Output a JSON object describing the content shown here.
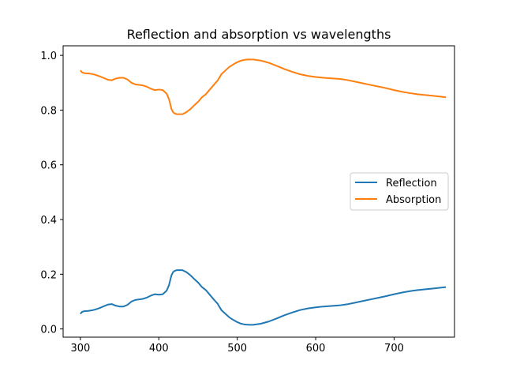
{
  "chart_data": {
    "type": "line",
    "title": "Reflection and absorption vs wavelengths",
    "xlabel": "",
    "ylabel": "",
    "xlim": [
      278,
      777
    ],
    "ylim": [
      -0.03,
      1.035
    ],
    "xticks": [
      300,
      400,
      500,
      600,
      700
    ],
    "yticks": [
      0.0,
      0.2,
      0.4,
      0.6,
      0.8,
      1.0
    ],
    "xtick_labels": [
      "300",
      "400",
      "500",
      "600",
      "700"
    ],
    "ytick_labels": [
      "0.0",
      "0.2",
      "0.4",
      "0.6",
      "0.8",
      "1.0"
    ],
    "grid": false,
    "legend_position": "center-right",
    "series": [
      {
        "name": "Reflection",
        "color": "#1f77b4",
        "x": [
          300,
          302,
          305,
          310,
          315,
          320,
          325,
          330,
          335,
          340,
          345,
          350,
          355,
          360,
          365,
          370,
          375,
          380,
          385,
          390,
          395,
          400,
          405,
          410,
          413,
          416,
          418,
          420,
          423,
          425,
          430,
          435,
          440,
          445,
          450,
          455,
          460,
          465,
          470,
          475,
          480,
          485,
          490,
          495,
          500,
          505,
          510,
          515,
          520,
          530,
          540,
          550,
          560,
          570,
          580,
          590,
          600,
          610,
          620,
          630,
          640,
          650,
          660,
          670,
          680,
          690,
          700,
          710,
          720,
          730,
          740,
          750,
          760,
          766
        ],
        "y": [
          0.055,
          0.062,
          0.065,
          0.066,
          0.068,
          0.072,
          0.077,
          0.083,
          0.089,
          0.091,
          0.085,
          0.082,
          0.082,
          0.088,
          0.1,
          0.106,
          0.108,
          0.11,
          0.115,
          0.122,
          0.127,
          0.125,
          0.127,
          0.14,
          0.16,
          0.195,
          0.207,
          0.212,
          0.215,
          0.215,
          0.215,
          0.208,
          0.197,
          0.183,
          0.17,
          0.153,
          0.142,
          0.125,
          0.108,
          0.092,
          0.068,
          0.055,
          0.042,
          0.033,
          0.025,
          0.019,
          0.016,
          0.015,
          0.015,
          0.019,
          0.027,
          0.038,
          0.05,
          0.06,
          0.069,
          0.075,
          0.079,
          0.082,
          0.084,
          0.086,
          0.09,
          0.096,
          0.102,
          0.108,
          0.114,
          0.12,
          0.127,
          0.133,
          0.138,
          0.142,
          0.145,
          0.148,
          0.151,
          0.153
        ]
      },
      {
        "name": "Absorption",
        "color": "#ff7f0e",
        "x": [
          300,
          302,
          305,
          310,
          315,
          320,
          325,
          330,
          335,
          340,
          345,
          350,
          355,
          360,
          365,
          370,
          375,
          380,
          385,
          390,
          395,
          400,
          405,
          410,
          413,
          416,
          418,
          420,
          423,
          425,
          430,
          435,
          440,
          445,
          450,
          455,
          460,
          465,
          470,
          475,
          480,
          485,
          490,
          495,
          500,
          505,
          510,
          515,
          520,
          530,
          540,
          550,
          560,
          570,
          580,
          590,
          600,
          610,
          620,
          630,
          640,
          650,
          660,
          670,
          680,
          690,
          700,
          710,
          720,
          730,
          740,
          750,
          760,
          766
        ],
        "y": [
          0.945,
          0.938,
          0.935,
          0.934,
          0.932,
          0.928,
          0.923,
          0.917,
          0.911,
          0.909,
          0.915,
          0.918,
          0.918,
          0.912,
          0.9,
          0.894,
          0.892,
          0.89,
          0.885,
          0.878,
          0.873,
          0.875,
          0.873,
          0.86,
          0.84,
          0.805,
          0.793,
          0.788,
          0.785,
          0.785,
          0.785,
          0.792,
          0.803,
          0.817,
          0.83,
          0.847,
          0.858,
          0.875,
          0.892,
          0.908,
          0.932,
          0.945,
          0.958,
          0.967,
          0.975,
          0.981,
          0.984,
          0.985,
          0.985,
          0.981,
          0.973,
          0.962,
          0.95,
          0.94,
          0.931,
          0.925,
          0.921,
          0.918,
          0.916,
          0.914,
          0.91,
          0.904,
          0.898,
          0.892,
          0.886,
          0.88,
          0.873,
          0.867,
          0.862,
          0.858,
          0.855,
          0.852,
          0.849,
          0.847
        ]
      }
    ]
  }
}
